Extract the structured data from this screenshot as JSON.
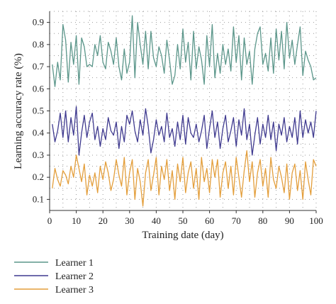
{
  "chart_data": {
    "type": "line",
    "title": "",
    "xlabel": "Training date (day)",
    "ylabel": "Learning accuracy rate (%)",
    "xlim": [
      0,
      100
    ],
    "ylim": [
      0.05,
      0.95
    ],
    "xticks": [
      "0",
      "10",
      "20",
      "30",
      "40",
      "50",
      "60",
      "70",
      "80",
      "90",
      "100"
    ],
    "yticks": [
      "0.1",
      "0.2",
      "0.3",
      "0.4",
      "0.5",
      "0.6",
      "0.7",
      "0.8",
      "0.9"
    ],
    "grid": true,
    "legend_position": "bottom-left",
    "series": [
      {
        "name": "Learner 1",
        "color": "#5b968a",
        "x": [
          1,
          2,
          3,
          4,
          5,
          6,
          7,
          8,
          9,
          10,
          11,
          12,
          13,
          14,
          15,
          16,
          17,
          18,
          19,
          20,
          21,
          22,
          23,
          24,
          25,
          26,
          27,
          28,
          29,
          30,
          31,
          32,
          33,
          34,
          35,
          36,
          37,
          38,
          39,
          40,
          41,
          42,
          43,
          44,
          45,
          46,
          47,
          48,
          49,
          50,
          51,
          52,
          53,
          54,
          55,
          56,
          57,
          58,
          59,
          60,
          61,
          62,
          63,
          64,
          65,
          66,
          67,
          68,
          69,
          70,
          71,
          72,
          73,
          74,
          75,
          76,
          77,
          78,
          79,
          80,
          81,
          82,
          83,
          84,
          85,
          86,
          87,
          88,
          89,
          90,
          91,
          92,
          93,
          94,
          95,
          96,
          97,
          98,
          99,
          100
        ],
        "values": [
          0.71,
          0.61,
          0.72,
          0.64,
          0.89,
          0.82,
          0.63,
          0.81,
          0.71,
          0.84,
          0.62,
          0.83,
          0.79,
          0.7,
          0.71,
          0.7,
          0.8,
          0.75,
          0.84,
          0.72,
          0.69,
          0.81,
          0.77,
          0.71,
          0.83,
          0.7,
          0.64,
          0.78,
          0.67,
          0.72,
          0.93,
          0.65,
          0.9,
          0.8,
          0.71,
          0.86,
          0.69,
          0.86,
          0.74,
          0.7,
          0.79,
          0.75,
          0.67,
          0.82,
          0.73,
          0.62,
          0.66,
          0.8,
          0.69,
          0.87,
          0.72,
          0.81,
          0.64,
          0.86,
          0.69,
          0.79,
          0.73,
          0.62,
          0.84,
          0.7,
          0.89,
          0.65,
          0.76,
          0.67,
          0.8,
          0.71,
          0.78,
          0.68,
          0.88,
          0.72,
          0.84,
          0.64,
          0.83,
          0.71,
          0.77,
          0.62,
          0.78,
          0.85,
          0.88,
          0.71,
          0.76,
          0.68,
          0.83,
          0.67,
          0.87,
          0.73,
          0.86,
          0.69,
          0.9,
          0.74,
          0.82,
          0.71,
          0.8,
          0.88,
          0.66,
          0.77,
          0.73,
          0.7,
          0.64,
          0.65
        ]
      },
      {
        "name": "Learner 2",
        "color": "#3f3a8f",
        "x": [
          1,
          2,
          3,
          4,
          5,
          6,
          7,
          8,
          9,
          10,
          11,
          12,
          13,
          14,
          15,
          16,
          17,
          18,
          19,
          20,
          21,
          22,
          23,
          24,
          25,
          26,
          27,
          28,
          29,
          30,
          31,
          32,
          33,
          34,
          35,
          36,
          37,
          38,
          39,
          40,
          41,
          42,
          43,
          44,
          45,
          46,
          47,
          48,
          49,
          50,
          51,
          52,
          53,
          54,
          55,
          56,
          57,
          58,
          59,
          60,
          61,
          62,
          63,
          64,
          65,
          66,
          67,
          68,
          69,
          70,
          71,
          72,
          73,
          74,
          75,
          76,
          77,
          78,
          79,
          80,
          81,
          82,
          83,
          84,
          85,
          86,
          87,
          88,
          89,
          90,
          91,
          92,
          93,
          94,
          95,
          96,
          97,
          98,
          99,
          100
        ],
        "values": [
          0.44,
          0.36,
          0.41,
          0.49,
          0.38,
          0.5,
          0.36,
          0.47,
          0.39,
          0.52,
          0.3,
          0.4,
          0.48,
          0.38,
          0.45,
          0.49,
          0.37,
          0.43,
          0.34,
          0.42,
          0.37,
          0.47,
          0.41,
          0.39,
          0.45,
          0.33,
          0.43,
          0.36,
          0.48,
          0.44,
          0.5,
          0.41,
          0.36,
          0.46,
          0.39,
          0.51,
          0.43,
          0.31,
          0.37,
          0.46,
          0.39,
          0.43,
          0.36,
          0.49,
          0.38,
          0.42,
          0.34,
          0.45,
          0.37,
          0.48,
          0.35,
          0.47,
          0.4,
          0.38,
          0.44,
          0.36,
          0.41,
          0.48,
          0.33,
          0.42,
          0.5,
          0.38,
          0.45,
          0.33,
          0.42,
          0.48,
          0.36,
          0.41,
          0.47,
          0.34,
          0.46,
          0.39,
          0.51,
          0.37,
          0.44,
          0.3,
          0.39,
          0.47,
          0.35,
          0.44,
          0.38,
          0.48,
          0.37,
          0.45,
          0.32,
          0.44,
          0.39,
          0.47,
          0.36,
          0.43,
          0.38,
          0.47,
          0.35,
          0.5,
          0.38,
          0.46,
          0.4,
          0.45,
          0.38,
          0.5
        ]
      },
      {
        "name": "Learner 3",
        "color": "#e39e3b",
        "x": [
          1,
          2,
          3,
          4,
          5,
          6,
          7,
          8,
          9,
          10,
          11,
          12,
          13,
          14,
          15,
          16,
          17,
          18,
          19,
          20,
          21,
          22,
          23,
          24,
          25,
          26,
          27,
          28,
          29,
          30,
          31,
          32,
          33,
          34,
          35,
          36,
          37,
          38,
          39,
          40,
          41,
          42,
          43,
          44,
          45,
          46,
          47,
          48,
          49,
          50,
          51,
          52,
          53,
          54,
          55,
          56,
          57,
          58,
          59,
          60,
          61,
          62,
          63,
          64,
          65,
          66,
          67,
          68,
          69,
          70,
          71,
          72,
          73,
          74,
          75,
          76,
          77,
          78,
          79,
          80,
          81,
          82,
          83,
          84,
          85,
          86,
          87,
          88,
          89,
          90,
          91,
          92,
          93,
          94,
          95,
          96,
          97,
          98,
          99,
          100
        ],
        "values": [
          0.15,
          0.24,
          0.19,
          0.16,
          0.23,
          0.21,
          0.17,
          0.25,
          0.2,
          0.3,
          0.24,
          0.18,
          0.26,
          0.12,
          0.21,
          0.16,
          0.22,
          0.13,
          0.25,
          0.19,
          0.27,
          0.22,
          0.14,
          0.19,
          0.28,
          0.21,
          0.16,
          0.29,
          0.12,
          0.22,
          0.28,
          0.1,
          0.24,
          0.18,
          0.07,
          0.22,
          0.28,
          0.14,
          0.21,
          0.29,
          0.12,
          0.25,
          0.19,
          0.28,
          0.14,
          0.23,
          0.1,
          0.26,
          0.18,
          0.29,
          0.13,
          0.22,
          0.27,
          0.15,
          0.24,
          0.1,
          0.29,
          0.18,
          0.24,
          0.13,
          0.28,
          0.2,
          0.28,
          0.11,
          0.22,
          0.27,
          0.15,
          0.25,
          0.12,
          0.29,
          0.2,
          0.11,
          0.23,
          0.32,
          0.18,
          0.27,
          0.11,
          0.22,
          0.28,
          0.16,
          0.24,
          0.11,
          0.29,
          0.19,
          0.15,
          0.25,
          0.2,
          0.13,
          0.26,
          0.1,
          0.22,
          0.26,
          0.14,
          0.23,
          0.1,
          0.27,
          0.19,
          0.12,
          0.28,
          0.25
        ]
      }
    ]
  }
}
